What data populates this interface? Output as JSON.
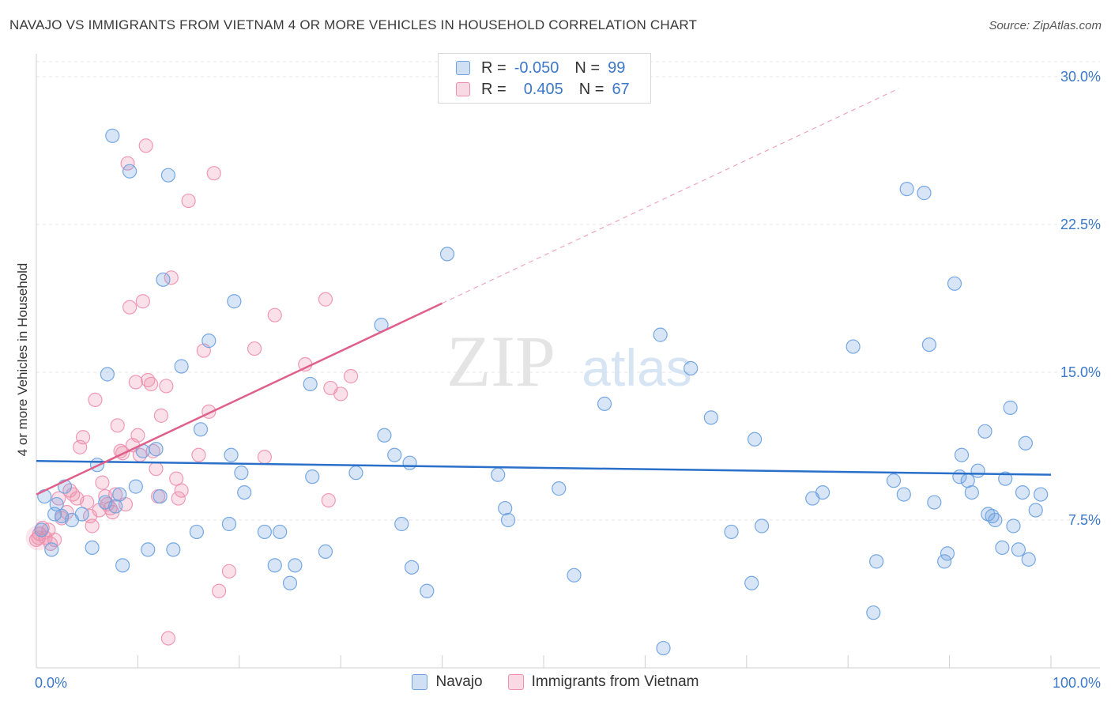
{
  "title": "NAVAJO VS IMMIGRANTS FROM VIETNAM 4 OR MORE VEHICLES IN HOUSEHOLD CORRELATION CHART",
  "source": "Source: ZipAtlas.com",
  "watermark": {
    "zip": "ZIP",
    "atlas": "atlas"
  },
  "legend": {
    "r_label": "R =",
    "n_label": "N =",
    "rows": [
      {
        "series": "Navajo",
        "r": "-0.050",
        "n": "99",
        "color": "#6fa3e0"
      },
      {
        "series": "Immigrants from Vietnam",
        "r": "0.405",
        "n": "67",
        "color": "#ee8fae"
      }
    ]
  },
  "chart_data": {
    "type": "scatter",
    "xlabel": "",
    "ylabel": "4 or more Vehicles in Household",
    "xlim": [
      0,
      100
    ],
    "ylim": [
      0,
      30
    ],
    "x_tick_labels": [
      "0.0%",
      "100.0%"
    ],
    "y_ticks": [
      7.5,
      15.0,
      22.5,
      30.0
    ],
    "y_tick_labels": [
      "7.5%",
      "15.0%",
      "22.5%",
      "30.0%"
    ],
    "grid": true,
    "legend_position": "bottom-center",
    "series": [
      {
        "name": "Navajo",
        "color": "#6fa3e0",
        "trend": {
          "x0": 0,
          "y0": 10.5,
          "x1": 100,
          "y1": 9.8
        },
        "points": [
          [
            0.8,
            8.7
          ],
          [
            1.5,
            6.0
          ],
          [
            1.8,
            7.8
          ],
          [
            2.0,
            8.3
          ],
          [
            2.5,
            7.7
          ],
          [
            2.8,
            9.2
          ],
          [
            3.5,
            7.5
          ],
          [
            4.5,
            7.8
          ],
          [
            5.5,
            6.1
          ],
          [
            6.0,
            10.3
          ],
          [
            6.8,
            8.4
          ],
          [
            7.0,
            14.9
          ],
          [
            7.5,
            27.0
          ],
          [
            7.8,
            8.2
          ],
          [
            8.2,
            8.8
          ],
          [
            8.5,
            5.2
          ],
          [
            9.2,
            25.2
          ],
          [
            9.8,
            9.2
          ],
          [
            10.5,
            11.0
          ],
          [
            11.0,
            6.0
          ],
          [
            11.8,
            11.1
          ],
          [
            12.2,
            8.7
          ],
          [
            12.5,
            19.7
          ],
          [
            13.0,
            25.0
          ],
          [
            14.3,
            15.3
          ],
          [
            15.8,
            6.9
          ],
          [
            16.2,
            12.1
          ],
          [
            17.0,
            16.6
          ],
          [
            19.0,
            7.3
          ],
          [
            19.2,
            10.8
          ],
          [
            19.5,
            18.6
          ],
          [
            20.2,
            9.9
          ],
          [
            20.5,
            8.9
          ],
          [
            22.5,
            6.9
          ],
          [
            23.5,
            5.2
          ],
          [
            24.0,
            6.9
          ],
          [
            25.0,
            4.3
          ],
          [
            25.5,
            5.2
          ],
          [
            27.0,
            14.4
          ],
          [
            27.2,
            9.7
          ],
          [
            28.5,
            5.9
          ],
          [
            31.5,
            9.9
          ],
          [
            34.0,
            17.4
          ],
          [
            34.3,
            11.8
          ],
          [
            35.3,
            10.8
          ],
          [
            36.0,
            7.3
          ],
          [
            36.8,
            10.4
          ],
          [
            37.0,
            5.1
          ],
          [
            38.5,
            3.9
          ],
          [
            40.5,
            21.0
          ],
          [
            45.5,
            9.8
          ],
          [
            46.2,
            8.1
          ],
          [
            46.5,
            7.5
          ],
          [
            51.5,
            9.1
          ],
          [
            53.0,
            4.7
          ],
          [
            56.0,
            13.4
          ],
          [
            61.5,
            16.9
          ],
          [
            61.8,
            1.0
          ],
          [
            64.5,
            15.2
          ],
          [
            66.5,
            12.7
          ],
          [
            68.5,
            6.9
          ],
          [
            70.5,
            4.3
          ],
          [
            70.8,
            11.6
          ],
          [
            71.5,
            7.2
          ],
          [
            76.5,
            8.6
          ],
          [
            77.5,
            8.9
          ],
          [
            80.5,
            16.3
          ],
          [
            82.5,
            2.8
          ],
          [
            82.8,
            5.4
          ],
          [
            84.5,
            9.5
          ],
          [
            85.5,
            8.8
          ],
          [
            85.8,
            24.3
          ],
          [
            87.5,
            24.1
          ],
          [
            88.0,
            16.4
          ],
          [
            88.5,
            8.4
          ],
          [
            89.5,
            5.4
          ],
          [
            89.8,
            5.8
          ],
          [
            90.5,
            19.5
          ],
          [
            91.0,
            9.7
          ],
          [
            91.2,
            10.8
          ],
          [
            91.8,
            9.5
          ],
          [
            92.2,
            8.9
          ],
          [
            92.8,
            10.0
          ],
          [
            93.5,
            12.0
          ],
          [
            93.8,
            7.8
          ],
          [
            94.2,
            7.7
          ],
          [
            94.5,
            7.5
          ],
          [
            95.2,
            6.1
          ],
          [
            95.5,
            9.6
          ],
          [
            96.0,
            13.2
          ],
          [
            96.3,
            7.2
          ],
          [
            96.8,
            6.0
          ],
          [
            97.2,
            8.9
          ],
          [
            97.5,
            11.4
          ],
          [
            97.8,
            5.5
          ],
          [
            98.5,
            8.0
          ],
          [
            99.0,
            8.8
          ],
          [
            0.5,
            7.0
          ],
          [
            13.5,
            6.0
          ]
        ]
      },
      {
        "name": "Immigrants from Vietnam",
        "color": "#ee8fae",
        "trend": {
          "x0": 0,
          "y0": 8.8,
          "x1": 40,
          "y1": 18.5,
          "x2": 85,
          "y2": 29.4
        },
        "points": [
          [
            0.0,
            6.5
          ],
          [
            0.3,
            6.8
          ],
          [
            0.6,
            7.1
          ],
          [
            0.9,
            6.6
          ],
          [
            1.2,
            7.0
          ],
          [
            1.4,
            6.3
          ],
          [
            1.8,
            6.5
          ],
          [
            2.2,
            8.6
          ],
          [
            2.5,
            7.6
          ],
          [
            3.0,
            7.9
          ],
          [
            3.3,
            9.0
          ],
          [
            3.6,
            8.8
          ],
          [
            4.0,
            8.6
          ],
          [
            4.3,
            11.2
          ],
          [
            4.6,
            11.7
          ],
          [
            5.0,
            8.4
          ],
          [
            5.3,
            7.7
          ],
          [
            5.5,
            7.2
          ],
          [
            5.8,
            13.6
          ],
          [
            6.2,
            8.0
          ],
          [
            6.5,
            9.4
          ],
          [
            6.8,
            8.7
          ],
          [
            7.0,
            8.3
          ],
          [
            7.3,
            8.1
          ],
          [
            7.5,
            7.9
          ],
          [
            7.8,
            8.8
          ],
          [
            8.0,
            12.3
          ],
          [
            8.3,
            11.0
          ],
          [
            8.5,
            10.9
          ],
          [
            8.8,
            8.3
          ],
          [
            9.0,
            25.6
          ],
          [
            9.2,
            18.3
          ],
          [
            9.5,
            11.3
          ],
          [
            9.8,
            14.5
          ],
          [
            10.0,
            11.8
          ],
          [
            10.2,
            10.8
          ],
          [
            10.5,
            18.6
          ],
          [
            10.8,
            26.5
          ],
          [
            11.0,
            14.6
          ],
          [
            11.3,
            14.4
          ],
          [
            11.5,
            11.0
          ],
          [
            11.8,
            10.1
          ],
          [
            12.0,
            8.7
          ],
          [
            12.3,
            12.8
          ],
          [
            12.8,
            14.3
          ],
          [
            13.0,
            1.5
          ],
          [
            13.3,
            19.8
          ],
          [
            13.8,
            9.6
          ],
          [
            14.0,
            8.6
          ],
          [
            14.3,
            9.0
          ],
          [
            15.0,
            23.7
          ],
          [
            16.0,
            10.8
          ],
          [
            16.5,
            16.1
          ],
          [
            17.0,
            13.0
          ],
          [
            17.5,
            25.1
          ],
          [
            18.0,
            3.9
          ],
          [
            19.0,
            4.9
          ],
          [
            21.5,
            16.2
          ],
          [
            22.5,
            10.7
          ],
          [
            23.5,
            17.9
          ],
          [
            26.5,
            15.4
          ],
          [
            28.5,
            18.7
          ],
          [
            28.8,
            8.5
          ],
          [
            29.0,
            14.2
          ],
          [
            30.0,
            13.9
          ],
          [
            31.0,
            14.8
          ],
          [
            0.2,
            6.6
          ]
        ]
      }
    ]
  }
}
